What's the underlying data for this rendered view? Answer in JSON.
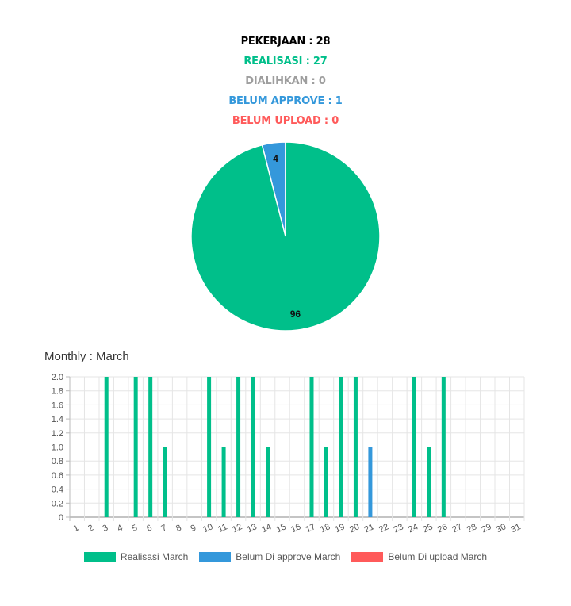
{
  "summary": {
    "pekerjaan": "PEKERJAAN : 28",
    "realisasi": "REALISASI : 27",
    "dialihkan": "DIALIHKAN : 0",
    "belum_approve": "BELUM APPROVE : 1",
    "belum_upload": "BELUM UPLOAD : 0"
  },
  "colors": {
    "black": "#000000",
    "green": "#00bf8a",
    "gray": "#9e9e9e",
    "blue": "#3498db",
    "red": "#ff5a5a"
  },
  "monthly_title": "Monthly : March",
  "chart_data": [
    {
      "type": "pie",
      "slices": [
        {
          "label": "96",
          "value": 96,
          "color": "#00bf8a"
        },
        {
          "label": "4",
          "value": 4,
          "color": "#3498db"
        }
      ]
    },
    {
      "type": "bar",
      "categories": [
        "1",
        "2",
        "3",
        "4",
        "5",
        "6",
        "7",
        "8",
        "9",
        "10",
        "11",
        "12",
        "13",
        "14",
        "15",
        "16",
        "17",
        "18",
        "19",
        "20",
        "21",
        "22",
        "23",
        "24",
        "25",
        "26",
        "27",
        "28",
        "29",
        "30",
        "31"
      ],
      "series": [
        {
          "name": "Realisasi March",
          "color": "#00bf8a",
          "values": [
            0,
            0,
            2,
            0,
            2,
            2,
            1,
            0,
            0,
            2,
            1,
            2,
            2,
            1,
            0,
            0,
            2,
            1,
            2,
            2,
            0,
            0,
            0,
            2,
            1,
            2,
            0,
            0,
            0,
            0,
            0
          ]
        },
        {
          "name": "Belum Di approve March",
          "color": "#3498db",
          "values": [
            0,
            0,
            0,
            0,
            0,
            0,
            0,
            0,
            0,
            0,
            0,
            0,
            0,
            0,
            0,
            0,
            0,
            0,
            0,
            0,
            1,
            0,
            0,
            0,
            0,
            0,
            0,
            0,
            0,
            0,
            0
          ]
        },
        {
          "name": "Belum Di upload March",
          "color": "#ff5a5a",
          "values": [
            0,
            0,
            0,
            0,
            0,
            0,
            0,
            0,
            0,
            0,
            0,
            0,
            0,
            0,
            0,
            0,
            0,
            0,
            0,
            0,
            0,
            0,
            0,
            0,
            0,
            0,
            0,
            0,
            0,
            0,
            0
          ]
        }
      ],
      "yticks": [
        "0",
        "0.2",
        "0.4",
        "0.6",
        "0.8",
        "1.0",
        "1.2",
        "1.4",
        "1.6",
        "1.8",
        "2.0"
      ],
      "ylim": [
        0,
        2
      ],
      "grid": true,
      "legend": "bottom"
    }
  ]
}
